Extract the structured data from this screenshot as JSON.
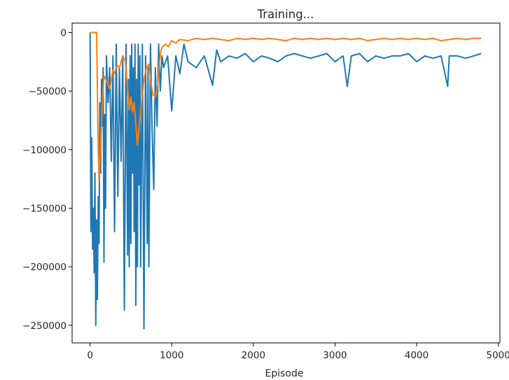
{
  "chart_data": {
    "type": "line",
    "title": "Training...",
    "xlabel": "Episode",
    "ylabel": "",
    "xlim": [
      -220,
      5020
    ],
    "ylim": [
      -265000,
      8000
    ],
    "xticks": [
      0,
      1000,
      2000,
      3000,
      4000,
      5000
    ],
    "xtick_labels": [
      "0",
      "1000",
      "2000",
      "3000",
      "4000",
      "5000"
    ],
    "yticks": [
      0,
      -50000,
      -100000,
      -150000,
      -200000,
      -250000
    ],
    "ytick_labels": [
      "0",
      "−50000",
      "−100000",
      "−150000",
      "−200000",
      "−250000"
    ],
    "grid": false,
    "legend": "none",
    "series": [
      {
        "color": "#1f77b4",
        "kind": "per-episode reward",
        "x": [
          0,
          10,
          20,
          30,
          40,
          50,
          60,
          70,
          80,
          90,
          100,
          110,
          120,
          130,
          140,
          150,
          160,
          170,
          180,
          190,
          200,
          220,
          240,
          260,
          280,
          300,
          320,
          340,
          360,
          380,
          400,
          420,
          440,
          460,
          470,
          480,
          490,
          500,
          510,
          520,
          530,
          540,
          550,
          560,
          570,
          580,
          590,
          600,
          610,
          620,
          640,
          660,
          680,
          700,
          710,
          720,
          740,
          760,
          780,
          800,
          820,
          840,
          860,
          880,
          900,
          950,
          1000,
          1050,
          1100,
          1150,
          1200,
          1300,
          1400,
          1500,
          1550,
          1600,
          1700,
          1800,
          1900,
          2000,
          2100,
          2200,
          2300,
          2400,
          2500,
          2600,
          2700,
          2800,
          2900,
          3000,
          3100,
          3150,
          3200,
          3300,
          3400,
          3500,
          3600,
          3700,
          3800,
          3900,
          4000,
          4100,
          4200,
          4300,
          4380,
          4400,
          4500,
          4600,
          4700,
          4790
        ],
        "y": [
          0,
          -170000,
          -90000,
          -185000,
          -150000,
          -205000,
          -120000,
          -250000,
          -160000,
          -228000,
          -140000,
          -180000,
          -60000,
          -120000,
          -40000,
          -80000,
          -30000,
          -196000,
          -70000,
          -150000,
          -20000,
          -60000,
          -30000,
          -110000,
          -20000,
          -170000,
          -10000,
          -140000,
          -30000,
          -110000,
          -20000,
          -237000,
          -10000,
          -190000,
          -40000,
          -200000,
          -20000,
          -180000,
          -10000,
          -120000,
          -30000,
          -170000,
          -10000,
          -233000,
          -40000,
          -200000,
          -10000,
          -130000,
          -20000,
          -200000,
          -10000,
          -253000,
          -20000,
          -180000,
          -30000,
          -200000,
          -10000,
          -85000,
          -134000,
          -30000,
          -80000,
          -10000,
          -50000,
          -20000,
          -30000,
          -20000,
          -67000,
          -20000,
          -35000,
          -10000,
          -25000,
          -30000,
          -20000,
          -45000,
          -15000,
          -25000,
          -20000,
          -22000,
          -18000,
          -25000,
          -20000,
          -22000,
          -25000,
          -20000,
          -18000,
          -20000,
          -22000,
          -20000,
          -18000,
          -25000,
          -20000,
          -46000,
          -20000,
          -18000,
          -25000,
          -20000,
          -22000,
          -20000,
          -20000,
          -18000,
          -25000,
          -20000,
          -22000,
          -20000,
          -46000,
          -20000,
          -20000,
          -22000,
          -20000,
          -18000
        ]
      },
      {
        "color": "#ff7f0e",
        "kind": "moving average",
        "x": [
          0,
          80,
          90,
          100,
          110,
          130,
          150,
          170,
          190,
          210,
          240,
          260,
          280,
          300,
          330,
          360,
          400,
          430,
          460,
          480,
          500,
          520,
          540,
          560,
          580,
          600,
          630,
          660,
          690,
          720,
          750,
          770,
          800,
          830,
          850,
          870,
          890,
          920,
          960,
          1000,
          1050,
          1100,
          1200,
          1300,
          1400,
          1500,
          1600,
          1700,
          1800,
          1900,
          2000,
          2100,
          2200,
          2300,
          2400,
          2500,
          2600,
          2700,
          2800,
          2900,
          3000,
          3100,
          3200,
          3300,
          3400,
          3500,
          3600,
          3700,
          3800,
          3900,
          4000,
          4100,
          4200,
          4300,
          4400,
          4500,
          4600,
          4700,
          4790
        ],
        "y": [
          0,
          0,
          -50000,
          -100000,
          -127000,
          -95000,
          -60000,
          -37000,
          -40000,
          -43000,
          -48000,
          -40000,
          -32000,
          -35000,
          -28000,
          -30000,
          -20000,
          -24000,
          -48000,
          -66000,
          -55000,
          -68000,
          -60000,
          -78000,
          -96000,
          -82000,
          -60000,
          -40000,
          -30000,
          -27000,
          -45000,
          -53000,
          -55000,
          -45000,
          -25000,
          -15000,
          -12000,
          -10000,
          -12000,
          -7000,
          -9000,
          -6000,
          -7000,
          -5000,
          -6000,
          -5000,
          -6000,
          -7000,
          -5000,
          -6000,
          -5000,
          -6000,
          -5000,
          -6000,
          -7000,
          -5000,
          -6000,
          -5000,
          -6000,
          -5000,
          -6000,
          -5000,
          -6000,
          -5000,
          -7000,
          -6000,
          -5000,
          -6000,
          -5000,
          -6000,
          -5000,
          -6000,
          -5000,
          -7000,
          -6000,
          -5000,
          -6000,
          -5000,
          -5000
        ]
      }
    ]
  }
}
